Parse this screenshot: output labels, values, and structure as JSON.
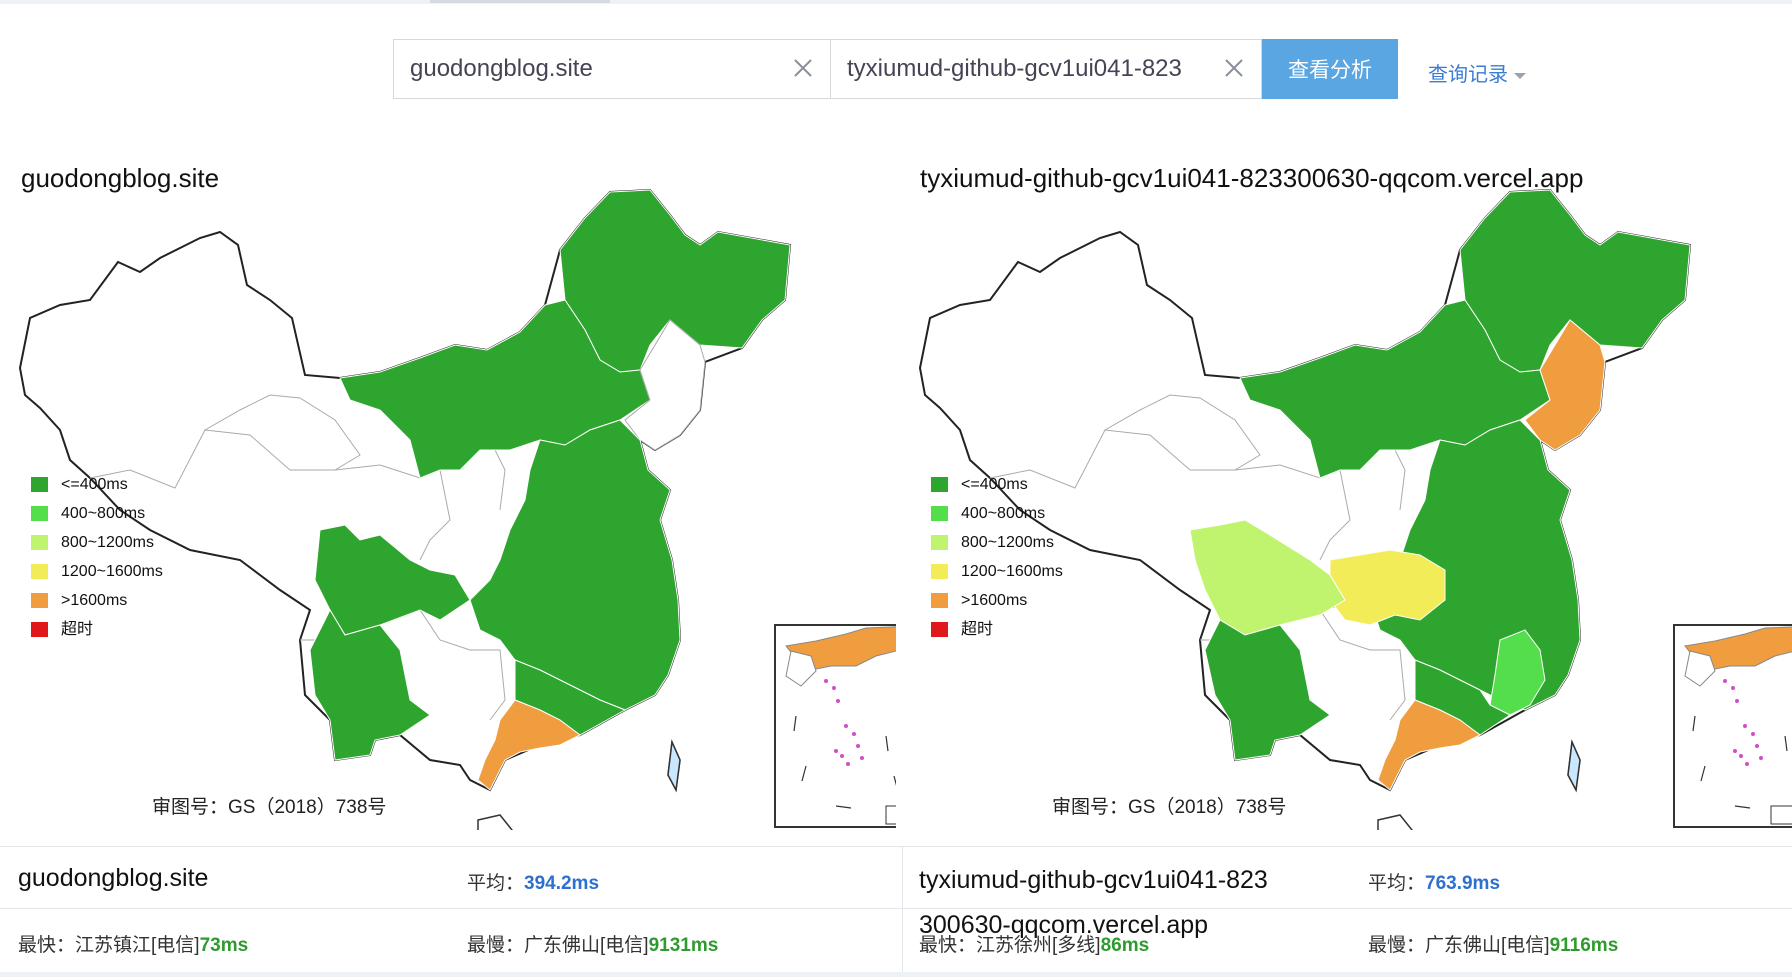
{
  "search": {
    "domain1_value": "guodongblog.site",
    "domain2_value": "tyxiumud-github-gcv1ui041-823",
    "analyze_label": "查看分析",
    "history_label": "查询记录"
  },
  "colors": {
    "lte400": "#2ea52e",
    "r400_800": "#55de4c",
    "r800_1200": "#c1f46e",
    "r1200_1600": "#f3ec59",
    "gt1600": "#ef9d3e",
    "timeout": "#e0181b",
    "button": "#5aa6e3",
    "link": "#3a7bd5"
  },
  "legend": [
    {
      "label": "<=400ms",
      "color": "#2ea52e"
    },
    {
      "label": "400~800ms",
      "color": "#55de4c"
    },
    {
      "label": "800~1200ms",
      "color": "#c1f46e"
    },
    {
      "label": "1200~1600ms",
      "color": "#f3ec59"
    },
    {
      "label": ">1600ms",
      "color": "#ef9d3e"
    },
    {
      "label": "超时",
      "color": "#e0181b"
    }
  ],
  "approval": "审图号：GS（2018）738号",
  "left": {
    "title": "guodongblog.site",
    "site": "guodongblog.site",
    "avg_label": "平均：",
    "avg_value": "394.2ms",
    "fast_label": "最快：",
    "fast_place": "江苏镇江[电信]",
    "fast_value": "73ms",
    "slow_label": "最慢：",
    "slow_place": "广东佛山[电信]",
    "slow_value": "9131ms"
  },
  "right": {
    "title": "tyxiumud-github-gcv1ui041-823300630-qqcom.vercel.app",
    "site": "tyxiumud-github-gcv1ui041-823300630-qqcom.vercel.app",
    "avg_label": "平均：",
    "avg_value": "763.9ms",
    "fast_label": "最快：",
    "fast_place": "江苏徐州[多线]",
    "fast_value": "86ms",
    "slow_label": "最慢：",
    "slow_place": "广东佛山[电信]",
    "slow_value": "9116ms"
  }
}
